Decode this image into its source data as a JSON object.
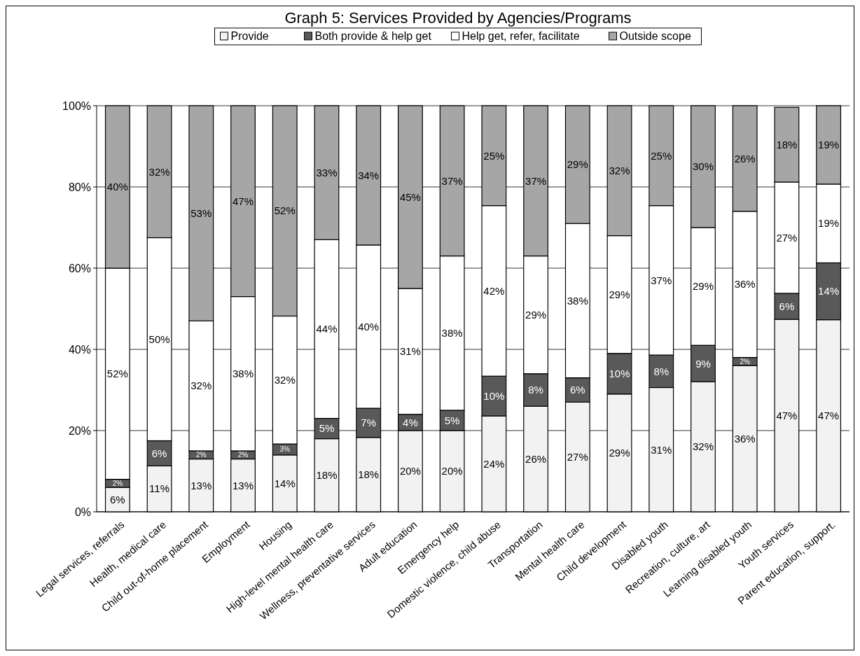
{
  "chart_data": {
    "type": "bar",
    "title": "Graph 5: Services Provided by Agencies/Programs",
    "stacked": true,
    "legend": "top",
    "grid": "y",
    "categories": [
      "Legal services, referrals",
      "Health, medical care",
      "Child out-of-home placement",
      "Employment",
      "Housing",
      "High-level mental health care",
      "Wellness, preventative services",
      "Adult education",
      "Emergency help",
      "Domestic violence, child abuse",
      "Transportation",
      "Mental health care",
      "Child development",
      "Disabled youth",
      "Recreation, culture, art",
      "Learning disabled youth",
      "Youth services",
      "Parent education, support."
    ],
    "ylim": [
      0,
      100
    ],
    "yticks": [
      {
        "value": 0,
        "label": "0%"
      },
      {
        "value": 20,
        "label": "20%"
      },
      {
        "value": 40,
        "label": "40%"
      },
      {
        "value": 60,
        "label": "60%"
      },
      {
        "value": 80,
        "label": "80%"
      },
      {
        "value": 100,
        "label": "100%"
      }
    ],
    "series": [
      {
        "name": "Provide",
        "color": "#f2f2f2",
        "values": [
          6,
          11.3,
          13,
          13,
          14,
          18,
          18.3,
          20,
          20,
          23.6,
          26,
          27,
          29,
          30.6,
          32,
          36,
          47.4,
          47.3
        ],
        "value_labels": [
          "6%",
          "11%",
          "13%",
          "13%",
          "14%",
          "18%",
          "18%",
          "20%",
          "20%",
          "24%",
          "26%",
          "27%",
          "29%",
          "31%",
          "32%",
          "36%",
          "47%",
          "47%"
        ]
      },
      {
        "name": "Both provide & help get",
        "color": "#595959",
        "values": [
          2,
          6.2,
          2,
          2,
          2.7,
          5,
          7.2,
          4,
          5,
          9.8,
          8,
          6,
          10,
          8,
          9,
          2,
          6.4,
          14
        ],
        "value_labels": [
          "2%",
          "6%",
          "2%",
          "2%",
          "3%",
          "5%",
          "7%",
          "4%",
          "5%",
          "10%",
          "8%",
          "6%",
          "10%",
          "8%",
          "9%",
          "2%",
          "6%",
          "14%"
        ]
      },
      {
        "name": "Help get, refer, facilitate",
        "color": "#ffffff",
        "values": [
          52,
          50,
          32,
          38,
          31.5,
          44,
          40.2,
          31,
          38,
          42,
          29,
          38,
          29,
          36.8,
          29,
          36,
          27.4,
          19.4
        ],
        "value_labels": [
          "52%",
          "50%",
          "32%",
          "38%",
          "32%",
          "44%",
          "40%",
          "31%",
          "38%",
          "42%",
          "29%",
          "38%",
          "29%",
          "37%",
          "29%",
          "36%",
          "27%",
          "19%"
        ]
      },
      {
        "name": "Outside scope",
        "color": "#a6a6a6",
        "values": [
          40,
          32.5,
          53,
          47,
          51.8,
          33,
          34.3,
          45,
          37,
          24.6,
          37,
          29,
          32,
          24.6,
          30,
          26,
          18.4,
          19.3
        ],
        "value_labels": [
          "40%",
          "32%",
          "53%",
          "47%",
          "52%",
          "33%",
          "34%",
          "45%",
          "37%",
          "25%",
          "37%",
          "29%",
          "32%",
          "25%",
          "30%",
          "26%",
          "18%",
          "19%"
        ]
      }
    ]
  }
}
